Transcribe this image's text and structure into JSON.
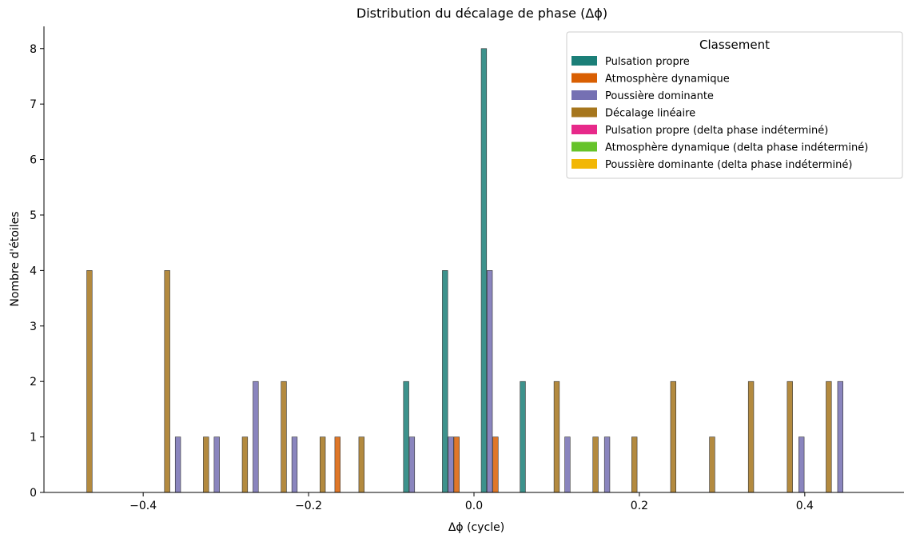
{
  "chart_data": {
    "type": "bar",
    "title": "Distribution du décalage de phase (Δϕ)",
    "xlabel": "Δϕ (cycle)",
    "ylabel": "Nombre d'étoiles",
    "xlim": [
      -0.52,
      0.52
    ],
    "ylim": [
      0,
      8.4
    ],
    "xticks": [
      -0.4,
      -0.2,
      0.0,
      0.2,
      0.4
    ],
    "xtick_labels": [
      "−0.4",
      "−0.2",
      "0.0",
      "0.2",
      "0.4"
    ],
    "yticks": [
      0,
      1,
      2,
      3,
      4,
      5,
      6,
      7,
      8
    ],
    "bin_width": 0.0065,
    "grid": false,
    "legend": {
      "title": "Classement",
      "placement": "top-right"
    },
    "series": [
      {
        "name": "Pulsation propre",
        "color": "#1b7f78",
        "bars": [
          {
            "x": -0.082,
            "y": 2
          },
          {
            "x": -0.035,
            "y": 4
          },
          {
            "x": 0.012,
            "y": 8
          },
          {
            "x": 0.059,
            "y": 2
          }
        ]
      },
      {
        "name": "Atmosphère dynamique",
        "color": "#d95f02",
        "bars": [
          {
            "x": -0.165,
            "y": 1
          },
          {
            "x": -0.021,
            "y": 1
          },
          {
            "x": 0.026,
            "y": 1
          }
        ]
      },
      {
        "name": "Poussière dominante",
        "color": "#7570b3",
        "bars": [
          {
            "x": -0.358,
            "y": 1
          },
          {
            "x": -0.311,
            "y": 1
          },
          {
            "x": -0.264,
            "y": 2
          },
          {
            "x": -0.217,
            "y": 1
          },
          {
            "x": -0.075,
            "y": 1
          },
          {
            "x": -0.028,
            "y": 1
          },
          {
            "x": 0.019,
            "y": 4
          },
          {
            "x": 0.113,
            "y": 1
          },
          {
            "x": 0.161,
            "y": 1
          },
          {
            "x": 0.396,
            "y": 1
          },
          {
            "x": 0.443,
            "y": 2
          }
        ]
      },
      {
        "name": "Décalage linéaire",
        "color": "#a6761d",
        "bars": [
          {
            "x": -0.465,
            "y": 4
          },
          {
            "x": -0.371,
            "y": 4
          },
          {
            "x": -0.324,
            "y": 1
          },
          {
            "x": -0.277,
            "y": 1
          },
          {
            "x": -0.23,
            "y": 2
          },
          {
            "x": -0.183,
            "y": 1
          },
          {
            "x": -0.136,
            "y": 1
          },
          {
            "x": 0.1,
            "y": 2
          },
          {
            "x": 0.147,
            "y": 1
          },
          {
            "x": 0.194,
            "y": 1
          },
          {
            "x": 0.241,
            "y": 2
          },
          {
            "x": 0.288,
            "y": 1
          },
          {
            "x": 0.335,
            "y": 2
          },
          {
            "x": 0.382,
            "y": 2
          },
          {
            "x": 0.429,
            "y": 2
          }
        ]
      },
      {
        "name": "Pulsation propre (delta phase indéterminé)",
        "color": "#e7298a",
        "bars": []
      },
      {
        "name": "Atmosphère dynamique (delta phase indéterminé)",
        "color": "#66c32a",
        "bars": []
      },
      {
        "name": "Poussière dominante (delta phase indéterminé)",
        "color": "#f2b705",
        "bars": []
      }
    ]
  }
}
